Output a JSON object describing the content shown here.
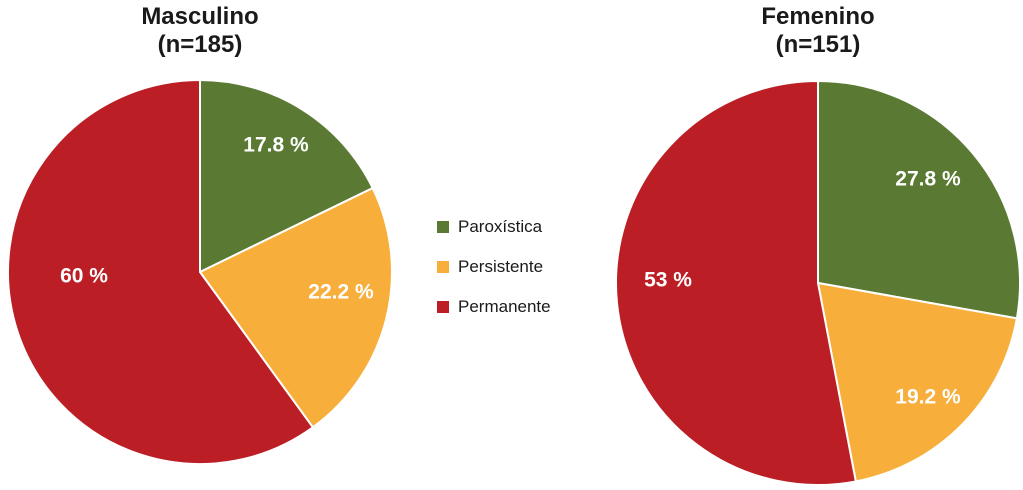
{
  "colors": {
    "paroxistica": "#5a7a33",
    "persistente": "#f7ae3b",
    "permanente": "#bb1e24"
  },
  "legend": [
    {
      "label": "Paroxística",
      "color": "#5a7a33"
    },
    {
      "label": "Persistente",
      "color": "#f7ae3b"
    },
    {
      "label": "Permanente",
      "color": "#bb1e24"
    }
  ],
  "chart_data": [
    {
      "type": "pie",
      "title": "Masculino",
      "subtitle": "(n=185)",
      "categories": [
        "Paroxística",
        "Persistente",
        "Permanente"
      ],
      "values": [
        17.8,
        22.2,
        60
      ],
      "labels": [
        "17.8 %",
        "22.2 %",
        "60 %"
      ],
      "colors": [
        "#5a7a33",
        "#f7ae3b",
        "#bb1e24"
      ],
      "legend": "center"
    },
    {
      "type": "pie",
      "title": "Femenino",
      "subtitle": "(n=151)",
      "categories": [
        "Paroxística",
        "Persistente",
        "Permanente"
      ],
      "values": [
        27.8,
        19.2,
        53
      ],
      "labels": [
        "27.8 %",
        "19.2 %",
        "53 %"
      ],
      "colors": [
        "#5a7a33",
        "#f7ae3b",
        "#bb1e24"
      ],
      "legend": "center"
    }
  ]
}
